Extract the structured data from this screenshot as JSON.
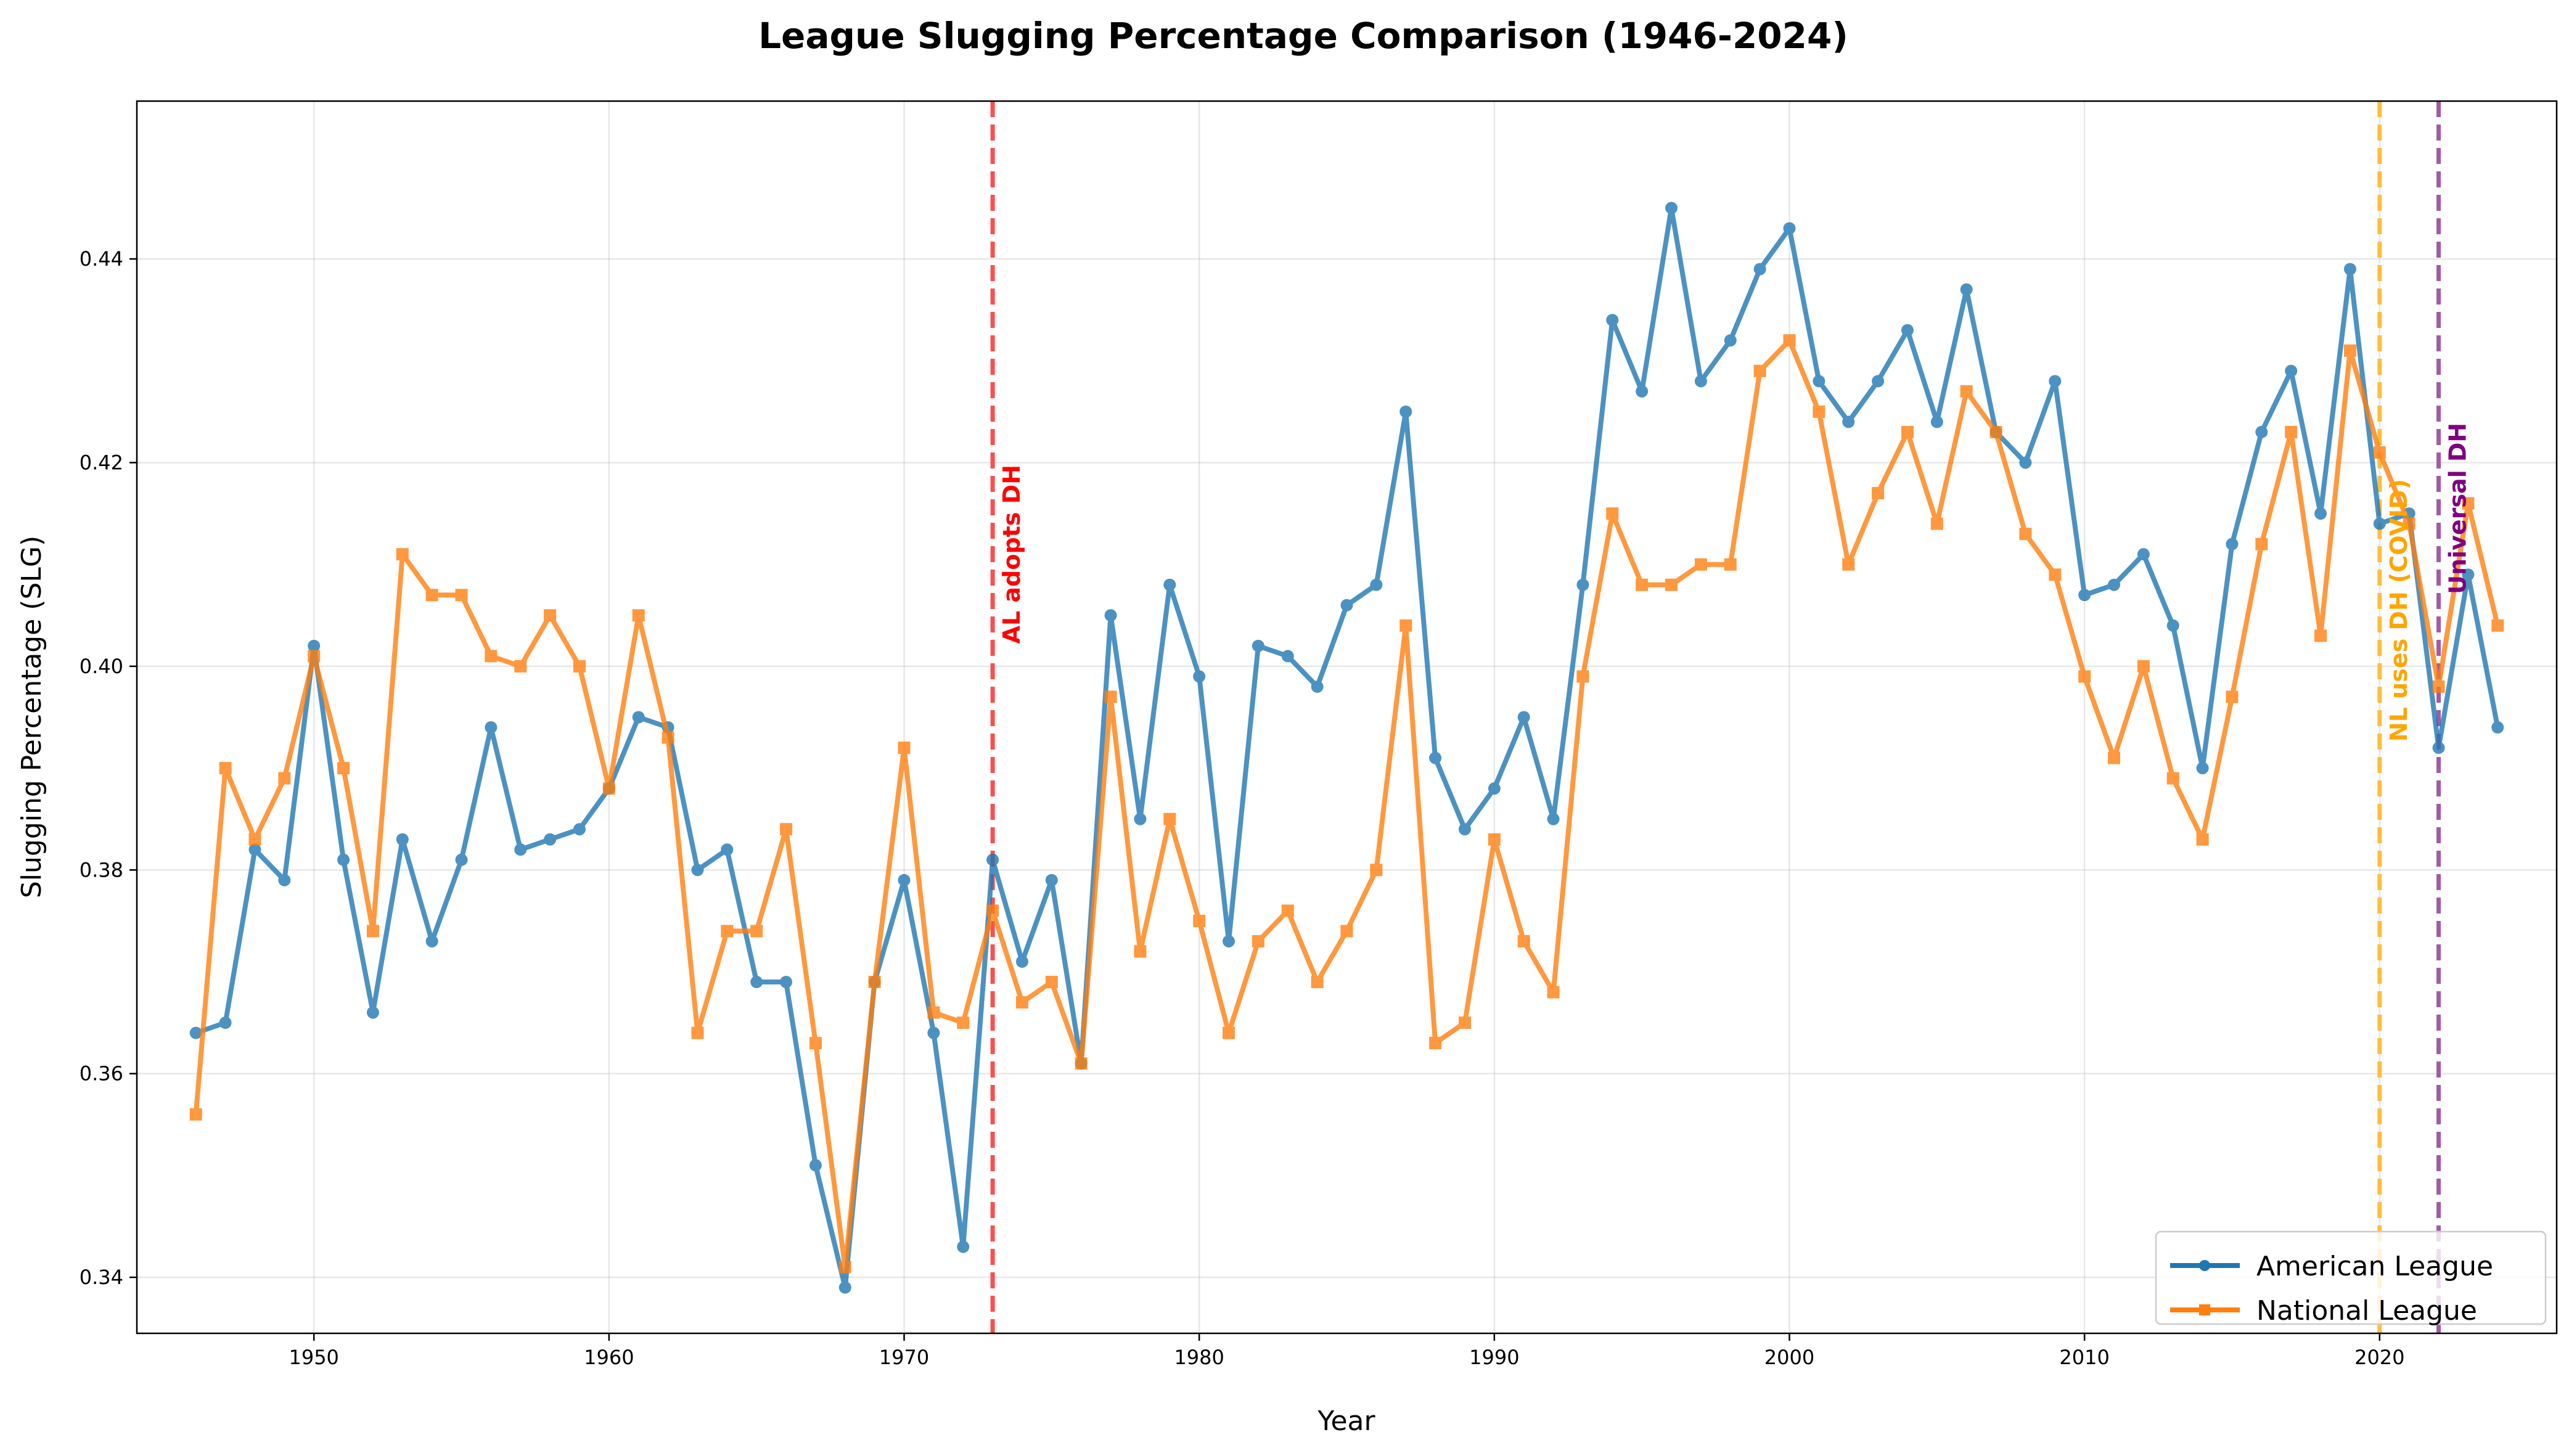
{
  "chart_data": {
    "type": "line",
    "title": "League Slugging Percentage Comparison (1946-2024)",
    "xlabel": "Year",
    "ylabel": "Slugging Percentage (SLG)",
    "xlim": [
      1944,
      2026
    ],
    "ylim": [
      0.3345,
      0.4555
    ],
    "xticks": [
      1950,
      1960,
      1970,
      1980,
      1990,
      2000,
      2010,
      2020
    ],
    "yticks": [
      0.34,
      0.36,
      0.38,
      0.4,
      0.42,
      0.44
    ],
    "ytick_labels": [
      "0.34",
      "0.36",
      "0.38",
      "0.40",
      "0.42",
      "0.44"
    ],
    "grid": true,
    "legend_position": "lower-right",
    "x": [
      1946,
      1947,
      1948,
      1949,
      1950,
      1951,
      1952,
      1953,
      1954,
      1955,
      1956,
      1957,
      1958,
      1959,
      1960,
      1961,
      1962,
      1963,
      1964,
      1965,
      1966,
      1967,
      1968,
      1969,
      1970,
      1971,
      1972,
      1973,
      1974,
      1975,
      1976,
      1977,
      1978,
      1979,
      1980,
      1981,
      1982,
      1983,
      1984,
      1985,
      1986,
      1987,
      1988,
      1989,
      1990,
      1991,
      1992,
      1993,
      1994,
      1995,
      1996,
      1997,
      1998,
      1999,
      2000,
      2001,
      2002,
      2003,
      2004,
      2005,
      2006,
      2007,
      2008,
      2009,
      2010,
      2011,
      2012,
      2013,
      2014,
      2015,
      2016,
      2017,
      2018,
      2019,
      2020,
      2021,
      2022,
      2023,
      2024
    ],
    "series": [
      {
        "name": "American League",
        "color": "#1f77b4",
        "marker": "circle",
        "values": [
          0.364,
          0.365,
          0.382,
          0.379,
          0.402,
          0.381,
          0.366,
          0.383,
          0.373,
          0.381,
          0.394,
          0.382,
          0.383,
          0.384,
          0.388,
          0.395,
          0.394,
          0.38,
          0.382,
          0.369,
          0.369,
          0.351,
          0.339,
          0.369,
          0.379,
          0.364,
          0.343,
          0.381,
          0.371,
          0.379,
          0.361,
          0.405,
          0.385,
          0.408,
          0.399,
          0.373,
          0.402,
          0.401,
          0.398,
          0.406,
          0.408,
          0.425,
          0.391,
          0.384,
          0.388,
          0.395,
          0.385,
          0.408,
          0.434,
          0.427,
          0.445,
          0.428,
          0.432,
          0.439,
          0.443,
          0.428,
          0.424,
          0.428,
          0.433,
          0.424,
          0.437,
          0.423,
          0.42,
          0.428,
          0.407,
          0.408,
          0.411,
          0.404,
          0.39,
          0.412,
          0.423,
          0.429,
          0.415,
          0.439,
          0.414,
          0.415,
          0.392,
          0.409,
          0.394
        ]
      },
      {
        "name": "National League",
        "color": "#ff7f0e",
        "marker": "square",
        "values": [
          0.356,
          0.39,
          0.383,
          0.389,
          0.401,
          0.39,
          0.374,
          0.411,
          0.407,
          0.407,
          0.401,
          0.4,
          0.405,
          0.4,
          0.388,
          0.405,
          0.393,
          0.364,
          0.374,
          0.374,
          0.384,
          0.363,
          0.341,
          0.369,
          0.392,
          0.366,
          0.365,
          0.376,
          0.367,
          0.369,
          0.361,
          0.397,
          0.372,
          0.385,
          0.375,
          0.364,
          0.373,
          0.376,
          0.369,
          0.374,
          0.38,
          0.404,
          0.363,
          0.365,
          0.383,
          0.373,
          0.368,
          0.399,
          0.415,
          0.408,
          0.408,
          0.41,
          0.41,
          0.429,
          0.432,
          0.425,
          0.41,
          0.417,
          0.423,
          0.414,
          0.427,
          0.423,
          0.413,
          0.409,
          0.399,
          0.391,
          0.4,
          0.389,
          0.383,
          0.397,
          0.412,
          0.423,
          0.403,
          0.431,
          0.421,
          0.414,
          0.398,
          0.416,
          0.404
        ]
      }
    ],
    "annotations": [
      {
        "x": 1973,
        "label": "AL adopts DH",
        "color": "#ff0000",
        "line_color": "#ff4d4d",
        "label_y": 0.411
      },
      {
        "x": 2020,
        "label": "NL uses DH (COVID)",
        "color": "#ffa500",
        "line_color": "#ffbe3c",
        "label_y": 0.4055
      },
      {
        "x": 2022,
        "label": "Universal DH",
        "color": "#800080",
        "line_color": "#a45aa8",
        "label_y": 0.4155
      }
    ]
  }
}
